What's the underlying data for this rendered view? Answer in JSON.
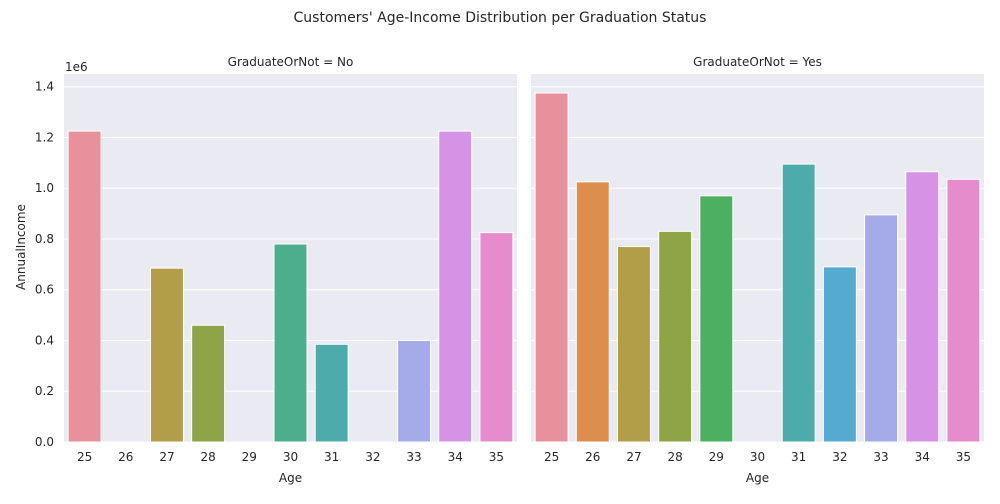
{
  "chart_data": {
    "type": "bar",
    "title": "Customers' Age-Income Distribution per Graduation Status",
    "xlabel": "Age",
    "ylabel": "AnnualIncome",
    "y_offset_label": "1e6",
    "categories": [
      "25",
      "26",
      "27",
      "28",
      "29",
      "30",
      "31",
      "32",
      "33",
      "34",
      "35"
    ],
    "ylim": [
      0,
      1.45
    ],
    "yticks": [
      0.0,
      0.2,
      0.4,
      0.6,
      0.8,
      1.0,
      1.2,
      1.4
    ],
    "ytick_labels": [
      "0.0",
      "0.2",
      "0.4",
      "0.6",
      "0.8",
      "1.0",
      "1.2",
      "1.4"
    ],
    "grid": true,
    "colors": [
      "#e8919c",
      "#dc8e4e",
      "#b29d48",
      "#8fa447",
      "#4daf60",
      "#4cae8c",
      "#4dacab",
      "#54aad0",
      "#a5abe8",
      "#d693e5",
      "#e68ccd"
    ],
    "panels": [
      {
        "title": "GraduateOrNot = No",
        "values": [
          1.225,
          null,
          0.685,
          0.46,
          null,
          0.78,
          0.385,
          null,
          0.4,
          1.225,
          0.825
        ]
      },
      {
        "title": "GraduateOrNot = Yes",
        "values": [
          1.375,
          1.025,
          0.77,
          0.83,
          0.97,
          null,
          1.095,
          0.69,
          0.895,
          1.065,
          1.035
        ]
      }
    ]
  }
}
